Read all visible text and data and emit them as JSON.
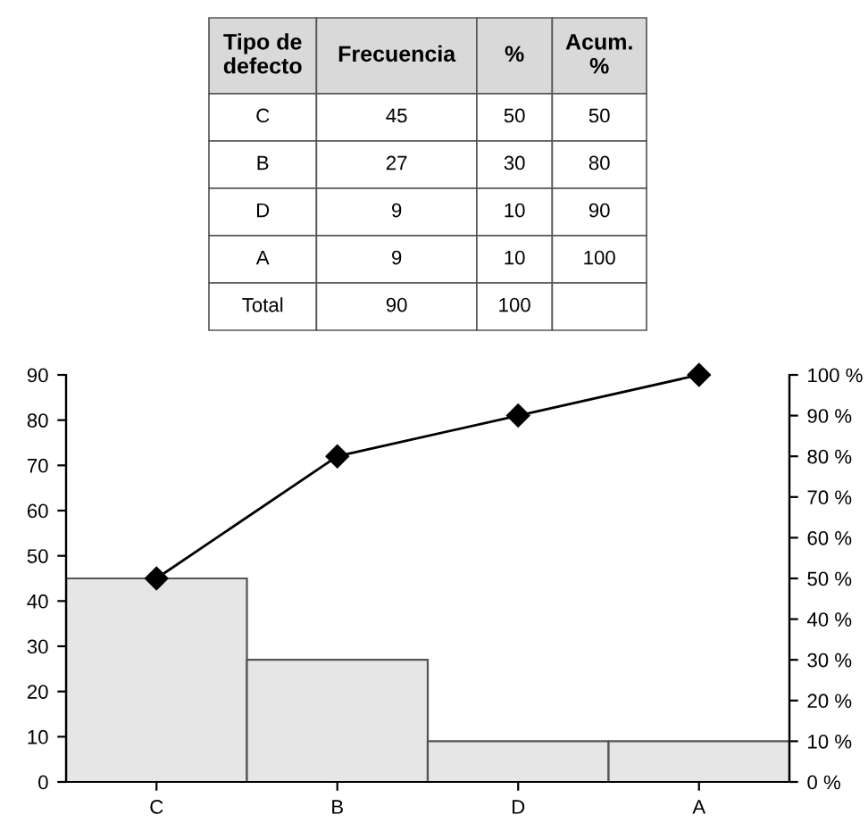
{
  "chart_data": {
    "type": "bar",
    "categories": [
      "C",
      "B",
      "D",
      "A"
    ],
    "series": [
      {
        "color": "#e6e6e6",
        "values": [
          45,
          27,
          9,
          9
        ]
      },
      {
        "type": "line",
        "axis": "y2",
        "color": "#000000",
        "marker": "diamond",
        "line_style": "solid",
        "values": [
          50,
          80,
          90,
          100
        ]
      }
    ],
    "ylim": [
      0,
      90
    ],
    "yticks": [
      0,
      10,
      20,
      30,
      40,
      50,
      60,
      70,
      80,
      90
    ],
    "y2lim": [
      0,
      100
    ],
    "y2ticks": [
      {
        "value": 0,
        "label": "0 %"
      },
      {
        "value": 10,
        "label": "10 %"
      },
      {
        "value": 20,
        "label": "20 %"
      },
      {
        "value": 30,
        "label": "30 %"
      },
      {
        "value": 40,
        "label": "40 %"
      },
      {
        "value": 50,
        "label": "50 %"
      },
      {
        "value": 60,
        "label": "60 %"
      },
      {
        "value": 70,
        "label": "70 %"
      },
      {
        "value": 80,
        "label": "80 %"
      },
      {
        "value": 90,
        "label": "90 %"
      },
      {
        "value": 100,
        "label": "100 %"
      }
    ],
    "grid": false,
    "legend": false,
    "annotations": [
      "Tipo de\ndefecto",
      "Frecuencia",
      "%",
      "Acum.\n%",
      "C",
      "45",
      "50",
      "50",
      "B",
      "27",
      "30",
      "80",
      "D",
      "9",
      "10",
      "90",
      "A",
      "9",
      "10",
      "100",
      "Total",
      "90",
      "100"
    ]
  }
}
